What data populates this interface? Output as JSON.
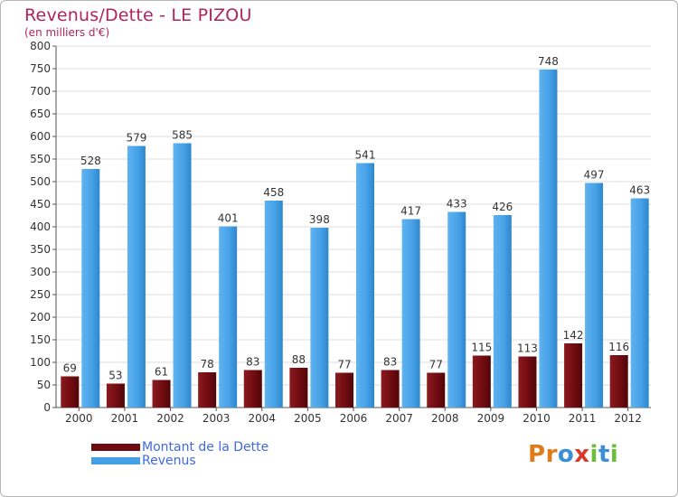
{
  "title": "Revenus/Dette - LE PIZOU",
  "subtitle": "(en milliers d'€)",
  "colors": {
    "title": "#b1225e",
    "dette": "#6e0b10",
    "revenus": "#45a0e6",
    "legend_text": "#3f6ae0",
    "grid": "#dcdcdc"
  },
  "legend": {
    "items": [
      {
        "label": "Montant de la Dette",
        "color": "#6e0b10"
      },
      {
        "label": "Revenus",
        "color": "#45a0e6"
      }
    ]
  },
  "logo": {
    "letters": [
      "P",
      "r",
      "o",
      "x",
      "i",
      "t",
      "i"
    ],
    "colors": [
      "#e07b1a",
      "#e07b1a",
      "#3a8fd6",
      "#d83a2a",
      "#6bbf3a",
      "#3a8fd6",
      "#6bbf3a"
    ]
  },
  "chart_data": {
    "type": "bar",
    "title": "Revenus/Dette - LE PIZOU",
    "subtitle": "(en milliers d'€)",
    "categories": [
      "2000",
      "2001",
      "2002",
      "2003",
      "2004",
      "2005",
      "2006",
      "2007",
      "2008",
      "2009",
      "2010",
      "2011",
      "2012"
    ],
    "series": [
      {
        "name": "Montant de la Dette",
        "values": [
          69,
          53,
          61,
          78,
          83,
          88,
          77,
          83,
          77,
          115,
          113,
          142,
          116
        ]
      },
      {
        "name": "Revenus",
        "values": [
          528,
          579,
          585,
          401,
          458,
          398,
          541,
          417,
          433,
          426,
          748,
          497,
          463
        ]
      }
    ],
    "ylim": [
      0,
      800
    ],
    "yticks": [
      0,
      50,
      100,
      150,
      200,
      250,
      300,
      350,
      400,
      450,
      500,
      550,
      600,
      650,
      700,
      750,
      800
    ],
    "grid": true,
    "legend_position": "bottom-left"
  }
}
